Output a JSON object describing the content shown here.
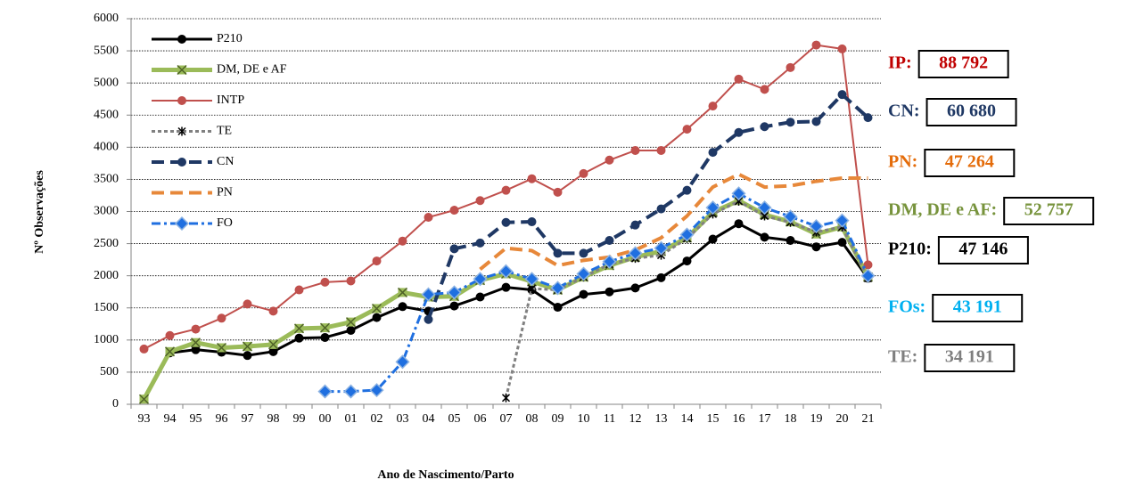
{
  "chart_data": {
    "type": "line",
    "y_label": "Nº Observações",
    "x_label": "Ano de Nascimento/Parto",
    "categories": [
      "93",
      "94",
      "95",
      "96",
      "97",
      "98",
      "99",
      "00",
      "01",
      "02",
      "03",
      "04",
      "05",
      "06",
      "07",
      "08",
      "09",
      "10",
      "11",
      "12",
      "13",
      "14",
      "15",
      "16",
      "17",
      "18",
      "19",
      "20",
      "21"
    ],
    "ylim": [
      0,
      6000
    ],
    "yticks": [
      0,
      500,
      1000,
      1500,
      2000,
      2500,
      3000,
      3500,
      4000,
      4500,
      5000,
      5500,
      6000
    ],
    "grid": true,
    "legend": "upper left",
    "series": [
      {
        "name": "P210",
        "color": "#000000",
        "dash": "solid",
        "marker": "circle",
        "width": 3,
        "values": [
          null,
          800,
          850,
          810,
          760,
          820,
          1030,
          1040,
          1150,
          1350,
          1520,
          1450,
          1530,
          1670,
          1820,
          1780,
          1510,
          1710,
          1750,
          1810,
          1970,
          2230,
          2570,
          2810,
          2600,
          2550,
          2450,
          2520,
          1960
        ]
      },
      {
        "name": "DM, DE e AF",
        "color": "#9bbb59",
        "dash": "solid",
        "marker": "x",
        "width": 5,
        "values": [
          80,
          820,
          960,
          880,
          900,
          930,
          1180,
          1190,
          1280,
          1490,
          1740,
          1670,
          1680,
          1930,
          2030,
          1910,
          1780,
          1980,
          2160,
          2290,
          2380,
          2590,
          2990,
          3170,
          2950,
          2840,
          2650,
          2760,
          1980
        ]
      },
      {
        "name": "INTP",
        "color": "#c0504d",
        "dash": "solid",
        "marker": "circle",
        "width": 2,
        "values": [
          860,
          1070,
          1170,
          1340,
          1560,
          1450,
          1780,
          1900,
          1920,
          2230,
          2540,
          2910,
          3020,
          3170,
          3330,
          3510,
          3300,
          3590,
          3800,
          3950,
          3950,
          4280,
          4640,
          5060,
          4900,
          5240,
          5590,
          5530,
          2170
        ]
      },
      {
        "name": "TE",
        "color": "#808080",
        "dash": "dotted",
        "marker": "star",
        "width": 3,
        "values": [
          null,
          null,
          null,
          null,
          null,
          null,
          null,
          null,
          null,
          null,
          null,
          null,
          null,
          null,
          100,
          1800,
          1780,
          1980,
          2180,
          2270,
          2320,
          2580,
          2960,
          3160,
          2930,
          2830,
          2680,
          2760,
          1960
        ]
      },
      {
        "name": "CN",
        "color": "#1f3864",
        "dash": "dashed",
        "marker": "circle",
        "width": 4,
        "values": [
          null,
          null,
          null,
          null,
          null,
          null,
          null,
          null,
          null,
          null,
          null,
          1320,
          2420,
          2510,
          2830,
          2840,
          2350,
          2350,
          2550,
          2790,
          3040,
          3330,
          3920,
          4230,
          4320,
          4390,
          4400,
          4820,
          4460
        ]
      },
      {
        "name": "PN",
        "color": "#e7883a",
        "dash": "dashed",
        "marker": "none",
        "width": 4,
        "values": [
          null,
          null,
          null,
          null,
          null,
          null,
          null,
          null,
          null,
          null,
          null,
          null,
          null,
          2100,
          2430,
          2390,
          2160,
          2240,
          2290,
          2400,
          2590,
          2930,
          3380,
          3580,
          3380,
          3400,
          3470,
          3520,
          3520
        ]
      },
      {
        "name": "FO",
        "color": "#1f6fe0",
        "dash": "dashdot",
        "marker": "diamond",
        "width": 3,
        "values": [
          null,
          null,
          null,
          null,
          null,
          null,
          null,
          200,
          200,
          220,
          660,
          1710,
          1740,
          1950,
          2070,
          1950,
          1810,
          2030,
          2220,
          2350,
          2430,
          2640,
          3060,
          3280,
          3060,
          2920,
          2770,
          2860,
          2000
        ]
      }
    ],
    "annotations": [
      {
        "label": "IP:",
        "value": "88 792",
        "color": "#c00000"
      },
      {
        "label": "CN:",
        "value": "60 680",
        "color": "#1f3864"
      },
      {
        "label": "PN:",
        "value": "47 264",
        "color": "#e46c0a"
      },
      {
        "label": "DM, DE e AF:",
        "value": "52 757",
        "color": "#77933c"
      },
      {
        "label": "P210:",
        "value": "47 146",
        "color": "#000000"
      },
      {
        "label": "FOs:",
        "value": "43 191",
        "color": "#00b0f0"
      },
      {
        "label": "TE:",
        "value": "34 191",
        "color": "#7f7f7f"
      }
    ]
  }
}
